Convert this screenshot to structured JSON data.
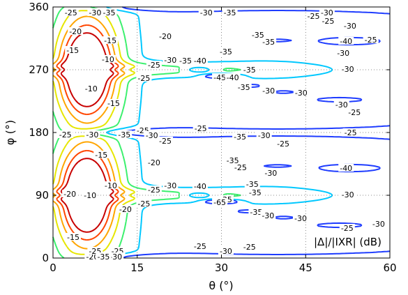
{
  "chart_data": {
    "type": "contour",
    "xlabel": "θ (°)",
    "ylabel": "φ (°)",
    "xlim": [
      0,
      60
    ],
    "ylim": [
      0,
      360
    ],
    "x_ticks": [
      "0",
      "15",
      "30",
      "45",
      "60"
    ],
    "y_ticks": [
      "0",
      "90",
      "180",
      "270",
      "360"
    ],
    "x_tick_values": [
      0,
      15,
      30,
      45,
      60
    ],
    "y_tick_values": [
      0,
      90,
      180,
      270,
      360
    ],
    "grid": "dotted",
    "legend_text": "|Δ|/|IXR| (dB)",
    "legend_position": "bottom-right",
    "levels": [
      -40,
      -35,
      -30,
      -25,
      -20,
      -15,
      -10
    ],
    "level_colors": {
      "-40": "#1e3cff",
      "-35": "#00c8ff",
      "-30": "#3cf06e",
      "-25": "#e6e600",
      "-20": "#ffa500",
      "-15": "#ff4500",
      "-10": "#c80000"
    },
    "contour_labels": [
      {
        "text": "-25",
        "x": 3.2,
        "y": 355
      },
      {
        "text": "-30",
        "x": 7.5,
        "y": 355
      },
      {
        "text": "-35",
        "x": 10,
        "y": 355
      },
      {
        "text": "-30",
        "x": 27.3,
        "y": 356
      },
      {
        "text": "-35",
        "x": 31.5,
        "y": 358
      },
      {
        "text": "-30",
        "x": 48.8,
        "y": 355
      },
      {
        "text": "-25",
        "x": 46.4,
        "y": 347
      },
      {
        "text": "-20",
        "x": 4,
        "y": 325
      },
      {
        "text": "-20",
        "x": 20,
        "y": 318
      },
      {
        "text": "-15",
        "x": 10.2,
        "y": 312
      },
      {
        "text": "-15",
        "x": 3.5,
        "y": 298
      },
      {
        "text": "-10",
        "x": 9.8,
        "y": 285
      },
      {
        "text": "-25",
        "x": 49,
        "y": 340
      },
      {
        "text": "-35",
        "x": 36.5,
        "y": 320
      },
      {
        "text": "-30",
        "x": 52.9,
        "y": 333
      },
      {
        "text": "-40",
        "x": 52.2,
        "y": 311
      },
      {
        "text": "-35",
        "x": 38.4,
        "y": 310
      },
      {
        "text": "-30",
        "x": 51.7,
        "y": 294
      },
      {
        "text": "-25",
        "x": 56.6,
        "y": 313
      },
      {
        "text": "-35",
        "x": 23.6,
        "y": 283
      },
      {
        "text": "-40",
        "x": 26.2,
        "y": 283
      },
      {
        "text": "-30",
        "x": 20.9,
        "y": 284
      },
      {
        "text": "-25",
        "x": 18,
        "y": 277
      },
      {
        "text": "-35",
        "x": 30.8,
        "y": 296
      },
      {
        "text": "-35",
        "x": 35,
        "y": 270
      },
      {
        "text": "-45",
        "x": 29.7,
        "y": 259
      },
      {
        "text": "-40",
        "x": 32,
        "y": 259
      },
      {
        "text": "-35",
        "x": 34,
        "y": 245
      },
      {
        "text": "-30",
        "x": 38.4,
        "y": 240
      },
      {
        "text": "-30",
        "x": 52.5,
        "y": 271
      },
      {
        "text": "-30",
        "x": 44.2,
        "y": 237
      },
      {
        "text": "-30",
        "x": 51.4,
        "y": 220
      },
      {
        "text": "-25",
        "x": 53.7,
        "y": 209
      },
      {
        "text": "-25",
        "x": 16.2,
        "y": 258
      },
      {
        "text": "-10",
        "x": 6.8,
        "y": 243
      },
      {
        "text": "-15",
        "x": 10.8,
        "y": 222
      },
      {
        "text": "-25",
        "x": 16,
        "y": 183
      },
      {
        "text": "-25",
        "x": 2.2,
        "y": 177
      },
      {
        "text": "-30",
        "x": 7,
        "y": 177
      },
      {
        "text": "-35",
        "x": 12.7,
        "y": 177
      },
      {
        "text": "-30",
        "x": 17.6,
        "y": 176
      },
      {
        "text": "-25",
        "x": 20,
        "y": 168
      },
      {
        "text": "-25",
        "x": 26.3,
        "y": 186
      },
      {
        "text": "-35",
        "x": 33.3,
        "y": 174
      },
      {
        "text": "-30",
        "x": 37.6,
        "y": 176
      },
      {
        "text": "-25",
        "x": 41,
        "y": 164
      },
      {
        "text": "-25",
        "x": 53,
        "y": 180
      },
      {
        "text": "-15",
        "x": 8.6,
        "y": 148
      },
      {
        "text": "-20",
        "x": 18,
        "y": 137
      },
      {
        "text": "-10",
        "x": 10.3,
        "y": 104
      },
      {
        "text": "-10",
        "x": 6.6,
        "y": 90
      },
      {
        "text": "-20",
        "x": 12.9,
        "y": 70
      },
      {
        "text": "-15",
        "x": 3.6,
        "y": 30
      },
      {
        "text": "-20",
        "x": 7,
        "y": 1
      },
      {
        "text": "-25",
        "x": 11.5,
        "y": 10
      },
      {
        "text": "-25",
        "x": 7.5,
        "y": 10
      },
      {
        "text": "-30",
        "x": 11.2,
        "y": 0
      },
      {
        "text": "-35",
        "x": 9,
        "y": 0
      },
      {
        "text": "-25",
        "x": 26.2,
        "y": 17
      },
      {
        "text": "-30",
        "x": 30.8,
        "y": 10
      },
      {
        "text": "-25",
        "x": 35,
        "y": 16
      },
      {
        "text": "-35",
        "x": 32,
        "y": 140
      },
      {
        "text": "-25",
        "x": 33.4,
        "y": 130
      },
      {
        "text": "-30",
        "x": 38.8,
        "y": 122
      },
      {
        "text": "-40",
        "x": 52.2,
        "y": 129
      },
      {
        "text": "-35",
        "x": 35.5,
        "y": 106
      },
      {
        "text": "-40",
        "x": 26.2,
        "y": 103
      },
      {
        "text": "-30",
        "x": 20.9,
        "y": 104
      },
      {
        "text": "-25",
        "x": 18,
        "y": 98
      },
      {
        "text": "-20",
        "x": 3,
        "y": 92
      },
      {
        "text": "-25",
        "x": 16.2,
        "y": 78
      },
      {
        "text": "-35",
        "x": 30.8,
        "y": 84
      },
      {
        "text": "-35",
        "x": 36,
        "y": 94
      },
      {
        "text": "-65",
        "x": 29.7,
        "y": 80
      },
      {
        "text": "-35",
        "x": 36.2,
        "y": 66
      },
      {
        "text": "-30",
        "x": 38.3,
        "y": 61
      },
      {
        "text": "-30",
        "x": 52.5,
        "y": 91
      },
      {
        "text": "-30",
        "x": 44.1,
        "y": 57
      },
      {
        "text": "-25",
        "x": 52.4,
        "y": 43
      },
      {
        "text": "-30",
        "x": 58,
        "y": 49
      }
    ]
  }
}
